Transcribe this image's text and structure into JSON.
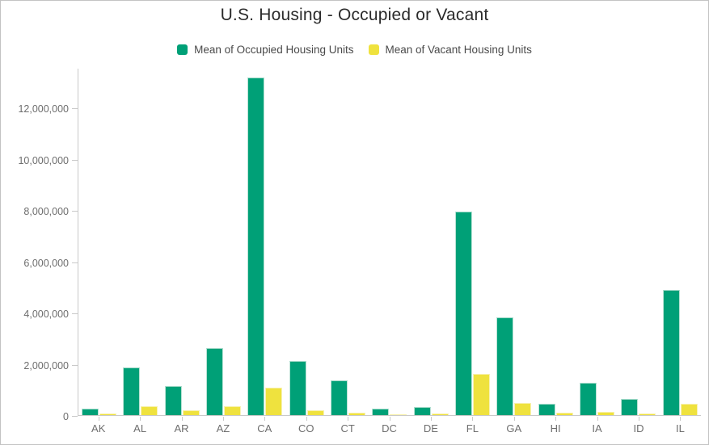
{
  "title": "U.S. Housing - Occupied or Vacant",
  "legend": {
    "items": [
      {
        "label": "Mean of Occupied Housing Units",
        "color": "#00A077"
      },
      {
        "label": "Mean of Vacant Housing Units",
        "color": "#EFE23E"
      }
    ]
  },
  "colors": {
    "occupied": "#00A077",
    "vacant": "#EFE23E",
    "axis": "#c9c9c9",
    "tick_label": "#6e6e6e",
    "title_text": "#2b2b2b",
    "legend_text": "#4a4a4a",
    "background": "#ffffff",
    "outer_border": "#c3c3c3"
  },
  "chart_data": {
    "type": "bar",
    "title": "U.S. Housing - Occupied or Vacant",
    "categories": [
      "AK",
      "AL",
      "AR",
      "AZ",
      "CA",
      "CO",
      "CT",
      "DC",
      "DE",
      "FL",
      "GA",
      "HI",
      "IA",
      "ID",
      "IL"
    ],
    "series": [
      {
        "name": "Mean of Occupied Housing Units",
        "color": "#00A077",
        "values": [
          240000,
          1850000,
          1130000,
          2610000,
          13150000,
          2120000,
          1350000,
          260000,
          330000,
          7950000,
          3800000,
          440000,
          1260000,
          620000,
          4880000
        ]
      },
      {
        "name": "Mean of Vacant Housing Units",
        "color": "#EFE23E",
        "values": [
          70000,
          360000,
          180000,
          360000,
          1070000,
          200000,
          105000,
          30000,
          55000,
          1600000,
          470000,
          80000,
          115000,
          65000,
          450000
        ]
      }
    ],
    "xlabel": "",
    "ylabel": "",
    "ylim": [
      0,
      13540000
    ],
    "yticks": [
      0,
      2000000,
      4000000,
      6000000,
      8000000,
      10000000,
      12000000
    ],
    "ytick_labels": [
      "0",
      "2,000,000",
      "4,000,000",
      "6,000,000",
      "8,000,000",
      "10,000,000",
      "12,000,000"
    ],
    "grid": false,
    "legend_position": "top"
  }
}
